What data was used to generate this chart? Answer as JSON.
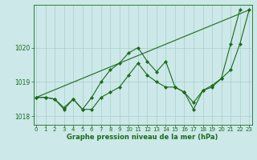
{
  "xlabel_label": "Graphe pression niveau de la mer (hPa)",
  "background_color": "#cce8e8",
  "grid_color": "#aacccc",
  "line_color": "#1a6b1a",
  "x": [
    0,
    1,
    2,
    3,
    4,
    5,
    6,
    7,
    8,
    9,
    10,
    11,
    12,
    13,
    14,
    15,
    16,
    17,
    18,
    19,
    20,
    21,
    22,
    23
  ],
  "series1": [
    1018.55,
    1018.55,
    1018.5,
    1018.2,
    1018.5,
    1018.2,
    1018.2,
    1018.55,
    1018.7,
    1018.85,
    1019.2,
    1019.55,
    1019.2,
    1019.0,
    1018.85,
    1018.85,
    1018.7,
    1018.4,
    1018.75,
    1018.85,
    1019.1,
    1019.35,
    1020.1,
    1021.1
  ],
  "series2": [
    1018.55,
    1018.55,
    1018.5,
    1018.25,
    1018.5,
    1018.2,
    1018.55,
    1019.0,
    1019.35,
    1019.55,
    1019.85,
    1020.0,
    1019.6,
    1019.3,
    1019.6,
    1018.85,
    1018.7,
    1018.2,
    1018.75,
    1018.9,
    1019.1,
    1020.1,
    1021.1,
    null
  ],
  "series3": [
    1018.55,
    1021.1
  ],
  "series3_x": [
    0,
    23
  ],
  "ylim": [
    1017.75,
    1021.25
  ],
  "xlim": [
    -0.3,
    23.3
  ],
  "yticks": [
    1018,
    1019,
    1020
  ],
  "xticks": [
    0,
    1,
    2,
    3,
    4,
    5,
    6,
    7,
    8,
    9,
    10,
    11,
    12,
    13,
    14,
    15,
    16,
    17,
    18,
    19,
    20,
    21,
    22,
    23
  ],
  "tick_fontsize": 5.0,
  "ylabel_fontsize": 5.5,
  "xlabel_fontsize": 6.0,
  "linewidth": 0.8,
  "markersize": 2.2
}
